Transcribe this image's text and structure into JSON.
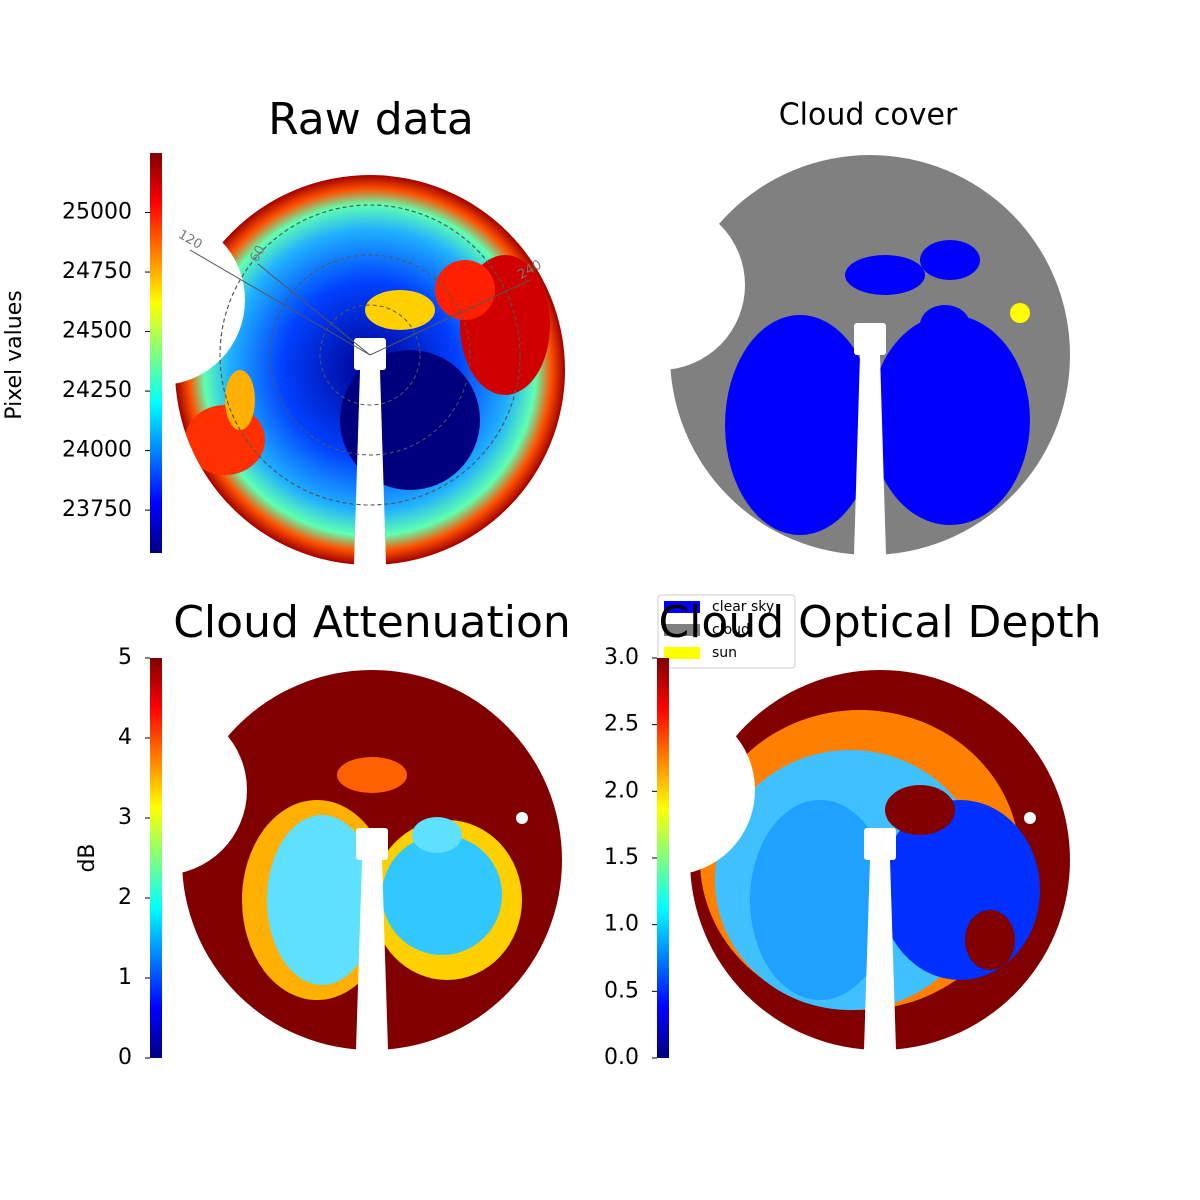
{
  "chart_data": [
    {
      "type": "image",
      "title": "Raw data",
      "colormap": "jet",
      "colorbar": {
        "label": "Pixel values",
        "lim": [
          23570,
          25250
        ],
        "ticks": [
          23750,
          24000,
          24250,
          24500,
          24750,
          25000
        ]
      },
      "angle_ticks": [
        120,
        60,
        240
      ]
    },
    {
      "type": "image",
      "title": "Cloud cover",
      "legend": [
        {
          "name": "clear sky",
          "color": "#0000ff"
        },
        {
          "name": "cloud",
          "color": "#808080"
        },
        {
          "name": "sun",
          "color": "#ffff00"
        }
      ]
    },
    {
      "type": "image",
      "title": "Cloud Attenuation",
      "colormap": "jet",
      "colorbar": {
        "label": "dB",
        "lim": [
          0,
          5
        ],
        "ticks": [
          0,
          1,
          2,
          3,
          4,
          5
        ]
      }
    },
    {
      "type": "image",
      "title": "Cloud Optical Depth",
      "colormap": "jet",
      "colorbar": {
        "lim": [
          0,
          3
        ],
        "ticks": [
          {
            "value": 0,
            "label": "0.0"
          },
          0.5,
          {
            "value": 1,
            "label": "1.0"
          },
          1.5,
          {
            "value": 2,
            "label": "2.0"
          },
          2.5,
          {
            "value": 3,
            "label": "3.0"
          }
        ]
      }
    }
  ]
}
